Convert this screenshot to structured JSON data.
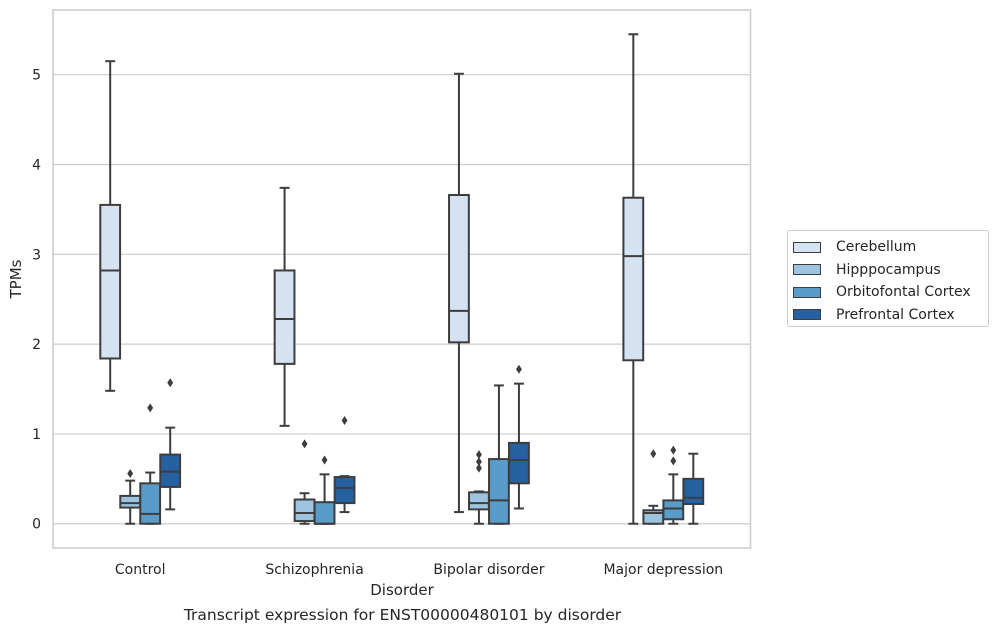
{
  "chart_data": {
    "type": "box",
    "xlabel": "Disorder",
    "ylabel": "TPMs",
    "ylim": [
      -0.27,
      5.72
    ],
    "yticks": [
      "0",
      "1",
      "2",
      "3",
      "4",
      "5"
    ],
    "grid": true,
    "legend_position": "right",
    "categories": [
      "Control",
      "Schizophrenia",
      "Bipolar disorder",
      "Major depression"
    ],
    "series": [
      {
        "name": "Cerebellum",
        "color": "#d4e2f2",
        "boxes": [
          {
            "q1": 1.84,
            "median": 2.82,
            "q3": 3.55,
            "whisker_low": 1.48,
            "whisker_high": 5.15,
            "outliers": []
          },
          {
            "q1": 1.78,
            "median": 2.28,
            "q3": 2.82,
            "whisker_low": 1.09,
            "whisker_high": 3.74,
            "outliers": []
          },
          {
            "q1": 2.02,
            "median": 2.37,
            "q3": 3.66,
            "whisker_low": 0.13,
            "whisker_high": 5.01,
            "outliers": []
          },
          {
            "q1": 1.82,
            "median": 2.98,
            "q3": 3.63,
            "whisker_low": 0.0,
            "whisker_high": 5.45,
            "outliers": []
          }
        ]
      },
      {
        "name": "Hipppocampus",
        "color": "#9cc4e0",
        "boxes": [
          {
            "q1": 0.18,
            "median": 0.23,
            "q3": 0.31,
            "whisker_low": 0.0,
            "whisker_high": 0.48,
            "outliers": [
              0.56
            ]
          },
          {
            "q1": 0.03,
            "median": 0.12,
            "q3": 0.27,
            "whisker_low": 0.0,
            "whisker_high": 0.34,
            "outliers": [
              0.89
            ]
          },
          {
            "q1": 0.16,
            "median": 0.23,
            "q3": 0.35,
            "whisker_low": 0.0,
            "whisker_high": 0.36,
            "outliers": [
              0.62,
              0.69,
              0.77
            ]
          },
          {
            "q1": 0.0,
            "median": 0.12,
            "q3": 0.15,
            "whisker_low": 0.0,
            "whisker_high": 0.2,
            "outliers": [
              0.78
            ]
          }
        ]
      },
      {
        "name": "Orbitofontal Cortex",
        "color": "#5a9cc9",
        "boxes": [
          {
            "q1": 0.0,
            "median": 0.11,
            "q3": 0.45,
            "whisker_low": 0.0,
            "whisker_high": 0.57,
            "outliers": [
              1.29
            ]
          },
          {
            "q1": 0.0,
            "median": 0.0,
            "q3": 0.24,
            "whisker_low": 0.0,
            "whisker_high": 0.55,
            "outliers": [
              0.71
            ]
          },
          {
            "q1": 0.0,
            "median": 0.26,
            "q3": 0.72,
            "whisker_low": 0.0,
            "whisker_high": 1.54,
            "outliers": []
          },
          {
            "q1": 0.05,
            "median": 0.17,
            "q3": 0.26,
            "whisker_low": 0.0,
            "whisker_high": 0.55,
            "outliers": [
              0.7,
              0.82
            ]
          }
        ]
      },
      {
        "name": "Prefrontal Cortex",
        "color": "#2561a0",
        "boxes": [
          {
            "q1": 0.41,
            "median": 0.58,
            "q3": 0.77,
            "whisker_low": 0.16,
            "whisker_high": 1.07,
            "outliers": [
              1.57
            ]
          },
          {
            "q1": 0.23,
            "median": 0.4,
            "q3": 0.52,
            "whisker_low": 0.13,
            "whisker_high": 0.53,
            "outliers": [
              1.15
            ]
          },
          {
            "q1": 0.45,
            "median": 0.71,
            "q3": 0.9,
            "whisker_low": 0.17,
            "whisker_high": 1.56,
            "outliers": [
              1.72
            ]
          },
          {
            "q1": 0.22,
            "median": 0.29,
            "q3": 0.5,
            "whisker_low": 0.0,
            "whisker_high": 0.78,
            "outliers": []
          }
        ]
      }
    ]
  },
  "caption": "Transcript expression for ENST00000480101 by disorder"
}
